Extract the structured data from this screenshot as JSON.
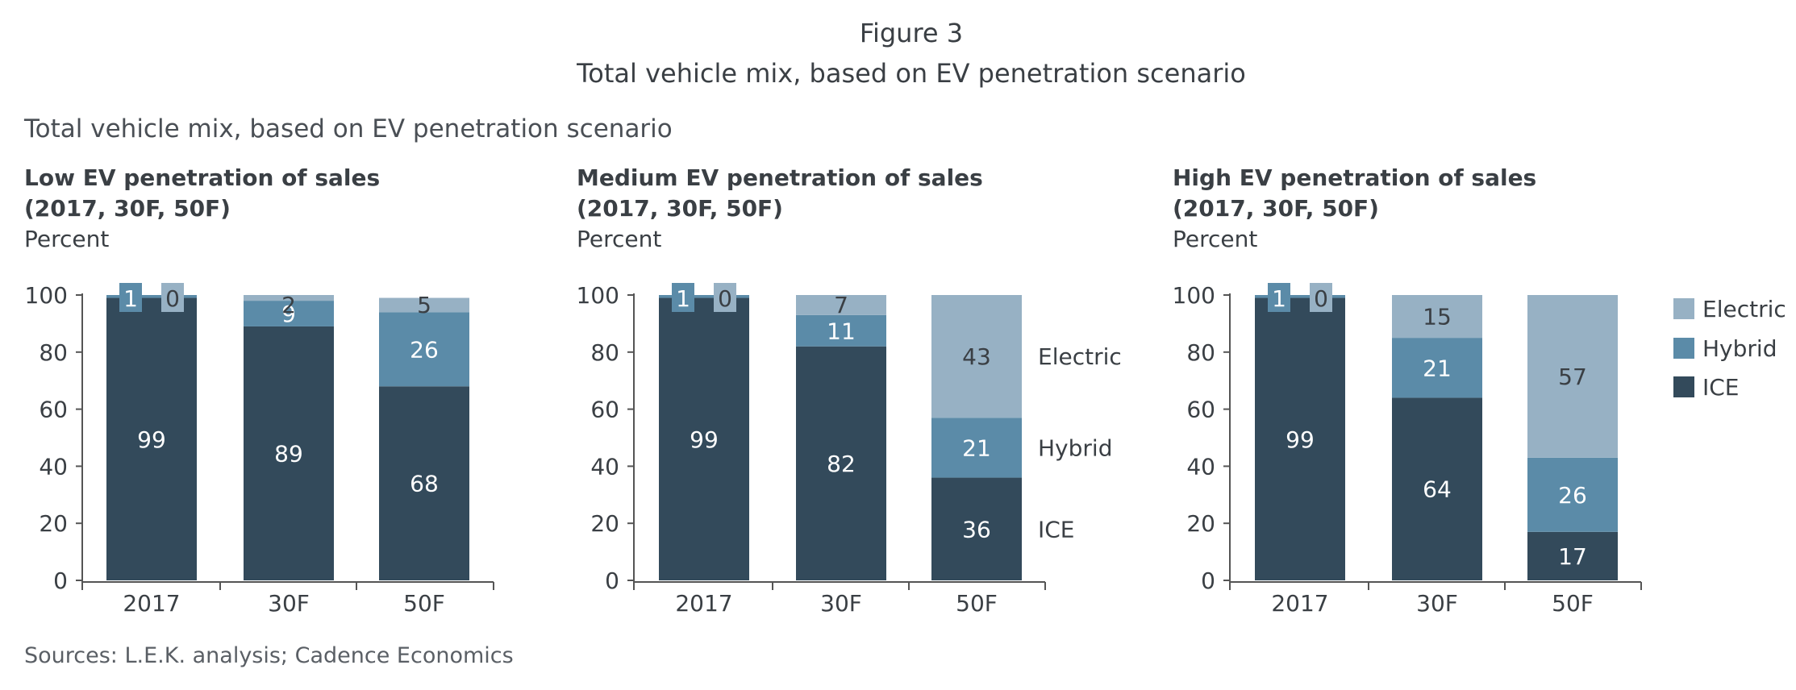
{
  "figure": {
    "number": "Figure 3",
    "title": "Total vehicle mix, based on EV penetration scenario"
  },
  "heading": "Total vehicle mix, based on EV penetration scenario",
  "source": "Sources: L.E.K. analysis; Cadence Economics",
  "colors": {
    "ICE": "#334a5b",
    "Hybrid": "#5b8ba8",
    "Electric": "#97b1c4"
  },
  "chart_data": [
    {
      "type": "bar",
      "stacked": true,
      "title": "Low EV penetration of sales",
      "subtitle": "(2017, 30F, 50F)",
      "ylabel": "Percent",
      "ylim": [
        0,
        100
      ],
      "yticks": [
        "0",
        "20",
        "40",
        "60",
        "80",
        "100"
      ],
      "categories": [
        "2017",
        "30F",
        "50F"
      ],
      "series": [
        {
          "name": "ICE",
          "values": [
            99,
            89,
            68
          ]
        },
        {
          "name": "Hybrid",
          "values": [
            1,
            9,
            26
          ]
        },
        {
          "name": "Electric",
          "values": [
            0,
            2,
            5
          ]
        }
      ],
      "series_labels": []
    },
    {
      "type": "bar",
      "stacked": true,
      "title": "Medium EV penetration of sales",
      "subtitle": "(2017, 30F, 50F)",
      "ylabel": "Percent",
      "ylim": [
        0,
        100
      ],
      "yticks": [
        "0",
        "20",
        "40",
        "60",
        "80",
        "100"
      ],
      "categories": [
        "2017",
        "30F",
        "50F"
      ],
      "series": [
        {
          "name": "ICE",
          "values": [
            99,
            82,
            36
          ]
        },
        {
          "name": "Hybrid",
          "values": [
            1,
            11,
            21
          ]
        },
        {
          "name": "Electric",
          "values": [
            0,
            7,
            43
          ]
        }
      ],
      "series_labels": [
        "ICE",
        "Hybrid",
        "Electric"
      ]
    },
    {
      "type": "bar",
      "stacked": true,
      "title": "High EV penetration of sales",
      "subtitle": "(2017, 30F, 50F)",
      "ylabel": "Percent",
      "ylim": [
        0,
        100
      ],
      "yticks": [
        "0",
        "20",
        "40",
        "60",
        "80",
        "100"
      ],
      "categories": [
        "2017",
        "30F",
        "50F"
      ],
      "series": [
        {
          "name": "ICE",
          "values": [
            99,
            64,
            17
          ]
        },
        {
          "name": "Hybrid",
          "values": [
            1,
            21,
            26
          ]
        },
        {
          "name": "Electric",
          "values": [
            0,
            15,
            57
          ]
        }
      ],
      "series_labels": []
    }
  ],
  "legend": {
    "placement": "right",
    "items": [
      "Electric",
      "Hybrid",
      "ICE"
    ]
  }
}
